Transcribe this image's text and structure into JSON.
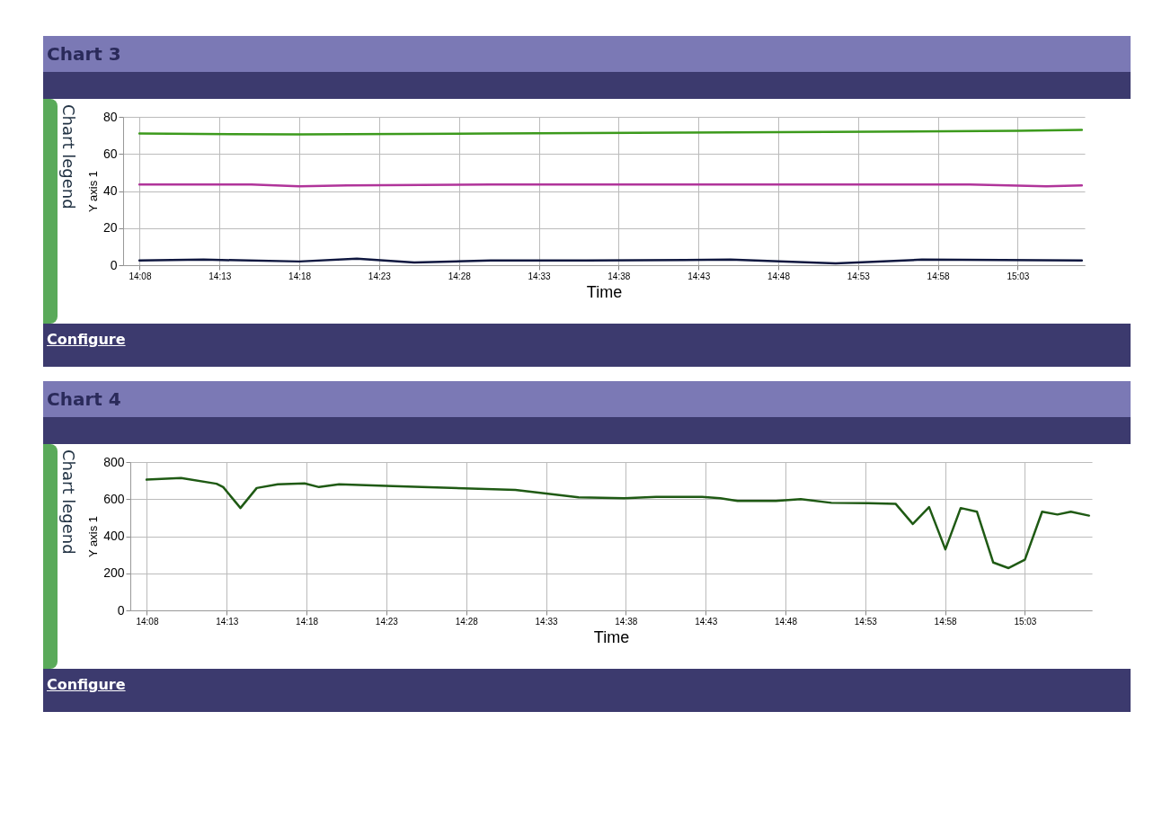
{
  "chart_data": [
    {
      "type": "line",
      "title": "Chart 3",
      "xlabel": "Time",
      "ylabel": "Y axis 1",
      "annotations": [
        "Chart legend",
        "Configure"
      ],
      "grid": true,
      "marker": "none",
      "line_style": "solid",
      "xlim": [
        14.116,
        15.12
      ],
      "xticks": [
        {
          "value": 14.1333,
          "label": "14:08"
        },
        {
          "value": 14.2167,
          "label": "14:13"
        },
        {
          "value": 14.3,
          "label": "14:18"
        },
        {
          "value": 14.3833,
          "label": "14:23"
        },
        {
          "value": 14.4667,
          "label": "14:28"
        },
        {
          "value": 14.55,
          "label": "14:33"
        },
        {
          "value": 14.6333,
          "label": "14:38"
        },
        {
          "value": 14.7167,
          "label": "14:43"
        },
        {
          "value": 14.8,
          "label": "14:48"
        },
        {
          "value": 14.8833,
          "label": "14:53"
        },
        {
          "value": 14.9667,
          "label": "14:58"
        },
        {
          "value": 15.05,
          "label": "15:03"
        }
      ],
      "ylim": [
        0,
        80
      ],
      "yticks": [
        0,
        20,
        40,
        60,
        80
      ],
      "series": [
        {
          "color": "#3c9a1c",
          "x": [
            14.133,
            14.3,
            14.5,
            14.7,
            14.9,
            15.05,
            15.117
          ],
          "values": [
            71,
            70.5,
            71,
            71.5,
            72,
            72.5,
            73
          ]
        },
        {
          "color": "#b0349a",
          "x": [
            14.133,
            14.25,
            14.3,
            14.35,
            14.5,
            14.7,
            15.0,
            15.08,
            15.117
          ],
          "values": [
            43.5,
            43.5,
            42.5,
            43,
            43.5,
            43.5,
            43.5,
            42.5,
            43
          ]
        },
        {
          "color": "#101840",
          "x": [
            14.133,
            14.2,
            14.3,
            14.36,
            14.42,
            14.5,
            14.6,
            14.75,
            14.86,
            14.95,
            15.117
          ],
          "values": [
            2.5,
            3,
            2,
            3.5,
            1.5,
            2.5,
            2.5,
            3,
            1,
            3,
            2.5
          ]
        }
      ]
    },
    {
      "type": "line",
      "title": "Chart 4",
      "xlabel": "Time",
      "ylabel": "Y axis 1",
      "annotations": [
        "Chart legend",
        "Configure"
      ],
      "grid": true,
      "marker": "none",
      "line_style": "solid",
      "xlim": [
        14.116,
        15.12
      ],
      "xticks": [
        {
          "value": 14.1333,
          "label": "14:08"
        },
        {
          "value": 14.2167,
          "label": "14:13"
        },
        {
          "value": 14.3,
          "label": "14:18"
        },
        {
          "value": 14.3833,
          "label": "14:23"
        },
        {
          "value": 14.4667,
          "label": "14:28"
        },
        {
          "value": 14.55,
          "label": "14:33"
        },
        {
          "value": 14.6333,
          "label": "14:38"
        },
        {
          "value": 14.7167,
          "label": "14:43"
        },
        {
          "value": 14.8,
          "label": "14:48"
        },
        {
          "value": 14.8833,
          "label": "14:53"
        },
        {
          "value": 14.9667,
          "label": "14:58"
        },
        {
          "value": 15.05,
          "label": "15:03"
        }
      ],
      "ylim": [
        0,
        800
      ],
      "yticks": [
        0,
        200,
        400,
        600,
        800
      ],
      "series": [
        {
          "color": "#1f5a14",
          "x": [
            14.133,
            14.169,
            14.206,
            14.213,
            14.231,
            14.248,
            14.27,
            14.298,
            14.313,
            14.334,
            14.39,
            14.518,
            14.584,
            14.632,
            14.665,
            14.713,
            14.732,
            14.75,
            14.79,
            14.816,
            14.848,
            14.886,
            14.915,
            14.933,
            14.95,
            14.967,
            14.983,
            15.0,
            15.017,
            15.033,
            15.05,
            15.068,
            15.084,
            15.098,
            15.117
          ],
          "values": [
            705,
            714,
            683,
            665,
            552,
            660,
            680,
            685,
            665,
            680,
            670,
            650,
            610,
            605,
            612,
            612,
            605,
            590,
            590,
            600,
            580,
            578,
            575,
            466,
            557,
            329,
            552,
            532,
            258,
            228,
            273,
            532,
            517,
            532,
            511
          ]
        }
      ]
    }
  ]
}
